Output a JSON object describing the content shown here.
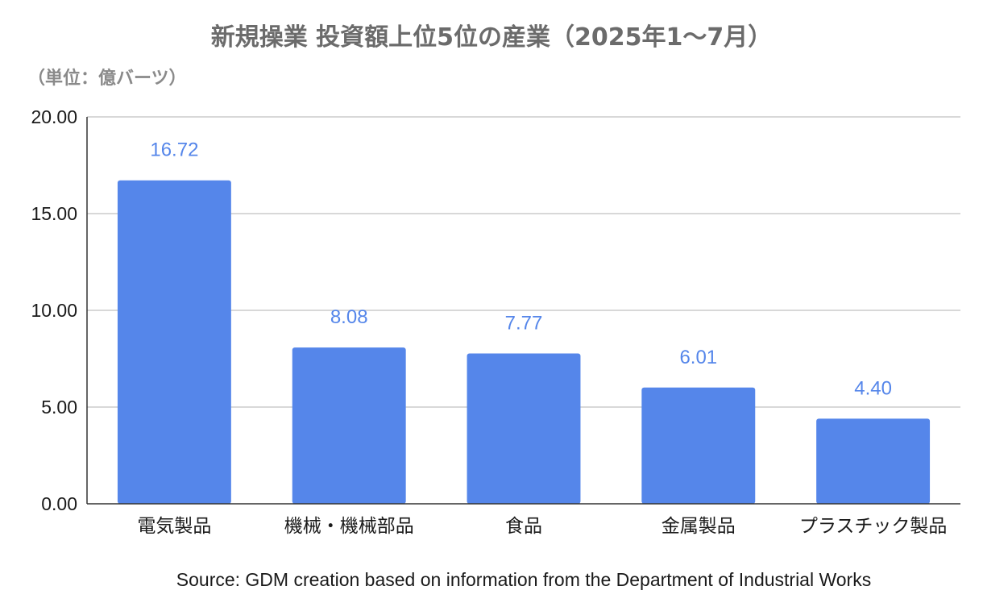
{
  "chart_data": {
    "type": "bar",
    "title": "新規操業 投資額上位5位の産業（2025年1〜7月）",
    "unit_label": "（単位：億バーツ）",
    "categories": [
      "電気製品",
      "機械・機械部品",
      "食品",
      "金属製品",
      "プラスチック製品"
    ],
    "values": [
      16.72,
      8.08,
      7.77,
      6.01,
      4.4
    ],
    "data_labels": [
      "16.72",
      "8.08",
      "7.77",
      "6.01",
      "4.40"
    ],
    "y_ticks": [
      "0.00",
      "5.00",
      "10.00",
      "15.00",
      "20.00"
    ],
    "ylim": [
      0,
      20
    ],
    "grid": true,
    "legend": "none",
    "bar_color": "#5586ea",
    "label_color": "#5586ea",
    "grid_color": "#cccccc",
    "source": "Source: GDM creation based on information from the Department of Industrial Works"
  }
}
